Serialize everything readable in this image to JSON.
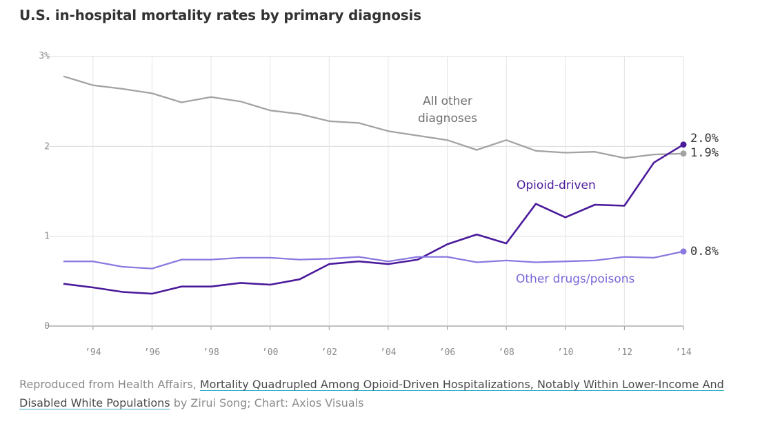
{
  "header": {
    "title": "U.S. in-hospital mortality rates by primary diagnosis"
  },
  "chart_data": {
    "type": "line",
    "title": "U.S. in-hospital mortality rates by primary diagnosis",
    "xlabel": "",
    "ylabel": "",
    "x": [
      1993,
      1994,
      1995,
      1996,
      1997,
      1998,
      1999,
      2000,
      2001,
      2002,
      2003,
      2004,
      2005,
      2006,
      2007,
      2008,
      2009,
      2010,
      2011,
      2012,
      2013,
      2014
    ],
    "xlim": [
      1993,
      2014
    ],
    "ylim": [
      0,
      3
    ],
    "xticks": [
      1994,
      1996,
      1998,
      2000,
      2002,
      2004,
      2006,
      2008,
      2010,
      2012,
      2014
    ],
    "xtick_labels": [
      "’94",
      "’96",
      "’98",
      "’00",
      "’02",
      "’04",
      "’06",
      "’08",
      "’10",
      "’12",
      "’14"
    ],
    "yticks": [
      0,
      1,
      2,
      3
    ],
    "ytick_labels": [
      "0",
      "1",
      "2",
      "3%"
    ],
    "series": [
      {
        "name": "All other diagnoses",
        "label_lines": [
          "All other",
          "diagnoses"
        ],
        "color": "#a3a3a3",
        "values": [
          2.78,
          2.68,
          2.64,
          2.59,
          2.49,
          2.55,
          2.5,
          2.4,
          2.36,
          2.28,
          2.26,
          2.17,
          2.12,
          2.07,
          1.96,
          2.07,
          1.95,
          1.93,
          1.94,
          1.87,
          1.91,
          1.92
        ],
        "end_label": "1.9%"
      },
      {
        "name": "Opioid-driven",
        "label_lines": [
          "Opioid-driven"
        ],
        "color": "#4b1a9b",
        "values": [
          0.47,
          0.43,
          0.38,
          0.36,
          0.44,
          0.44,
          0.48,
          0.46,
          0.52,
          0.69,
          0.72,
          0.69,
          0.74,
          0.91,
          1.02,
          0.92,
          1.36,
          1.21,
          1.35,
          1.34,
          1.82,
          2.02
        ],
        "end_label": "2.0%"
      },
      {
        "name": "Other drugs/poisons",
        "label_lines": [
          "Other drugs/poisons"
        ],
        "color": "#8b78e0",
        "values": [
          0.72,
          0.72,
          0.66,
          0.64,
          0.74,
          0.74,
          0.76,
          0.76,
          0.74,
          0.75,
          0.77,
          0.72,
          0.77,
          0.77,
          0.71,
          0.73,
          0.71,
          0.72,
          0.73,
          0.77,
          0.76,
          0.83
        ],
        "end_label": "0.8%"
      }
    ]
  },
  "footer": {
    "prefix": "Reproduced from Health Affairs, ",
    "link_text": "Mortality Quadrupled Among Opioid-Driven Hospitalizations, Notably Within Lower-Income And Disabled White Populations",
    "suffix": " by Zirui Song; Chart: Axios Visuals"
  }
}
